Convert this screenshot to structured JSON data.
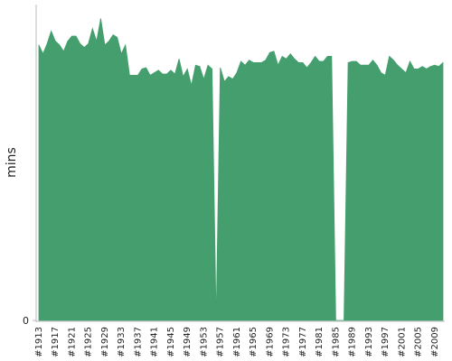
{
  "chart_data": {
    "type": "area",
    "y_label": "mins",
    "color": "#459e6d",
    "categories": [
      "#1913",
      null,
      null,
      null,
      "#1917",
      null,
      null,
      null,
      "#1921",
      null,
      null,
      null,
      "#1925",
      null,
      null,
      null,
      "#1929",
      null,
      null,
      null,
      "#1933",
      null,
      null,
      null,
      "#1937",
      null,
      null,
      null,
      "#1941",
      null,
      null,
      null,
      "#1945",
      null,
      null,
      null,
      "#1949",
      null,
      null,
      null,
      "#1953",
      null,
      null,
      null,
      "#1957",
      null,
      null,
      null,
      "#1961",
      null,
      null,
      null,
      "#1965",
      null,
      null,
      null,
      "#1969",
      null,
      null,
      null,
      "#1973",
      null,
      null,
      null,
      "#1977",
      null,
      null,
      null,
      "#1981",
      null,
      null,
      null,
      "#1985",
      null,
      null,
      null,
      "#1989",
      null,
      null,
      null,
      "#1993",
      null,
      null,
      null,
      "#1997",
      null,
      null,
      null,
      "#2001",
      null,
      null,
      null,
      "#2005",
      null,
      null,
      null,
      "#2009",
      null,
      null
    ],
    "values": [
      21.8,
      21.1,
      21.9,
      22.9,
      22.1,
      21.8,
      21.3,
      22.1,
      22.5,
      22.5,
      21.9,
      21.6,
      21.9,
      23.1,
      22.1,
      23.9,
      21.8,
      22.1,
      22.6,
      22.4,
      21.1,
      21.8,
      19.4,
      19.4,
      19.4,
      19.9,
      20.0,
      19.4,
      19.6,
      19.8,
      19.5,
      19.5,
      19.8,
      19.5,
      20.7,
      19.3,
      19.9,
      18.6,
      20.2,
      20.1,
      19.1,
      20.2,
      19.9,
      0,
      20.0,
      18.9,
      19.3,
      19.1,
      19.6,
      20.5,
      20.2,
      20.6,
      20.4,
      20.4,
      20.4,
      20.6,
      21.2,
      21.3,
      20.2,
      20.9,
      20.7,
      21.1,
      20.7,
      20.4,
      20.4,
      20.0,
      20.4,
      20.9,
      20.5,
      20.5,
      20.9,
      20.9,
      0,
      0,
      0,
      20.4,
      20.5,
      20.5,
      20.2,
      20.2,
      20.2,
      20.6,
      20.2,
      19.6,
      19.4,
      20.9,
      20.6,
      20.2,
      19.9,
      19.6,
      20.5,
      19.9,
      19.9,
      20.1,
      19.9,
      20.1,
      20.2,
      20.1,
      20.4
    ],
    "ylim": [
      0,
      25
    ],
    "yticks": [
      0
    ]
  }
}
